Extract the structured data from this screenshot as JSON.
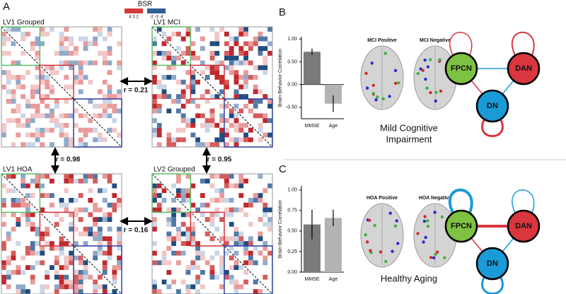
{
  "panels": [
    "A",
    "B",
    "C"
  ],
  "bsr_legend": {
    "title": "BSR",
    "positive_labels": "4 3 2",
    "negative_labels": "-2 -3 -4"
  },
  "matrices": [
    {
      "title": "LV1 Grouped"
    },
    {
      "title": "LV1 MCI"
    },
    {
      "title": "LV1 HOA"
    },
    {
      "title": "LV2 Grouped"
    }
  ],
  "correlations": [
    "r = 0.21",
    "r = 0.98",
    "r = 0.95",
    "r = 0.16"
  ],
  "chart_data": [
    {
      "type": "bar",
      "y_label": "Brain-Behavior Correlation",
      "categories": [
        "MMSE",
        "Age"
      ],
      "values": [
        0.72,
        -0.42
      ],
      "errors": [
        0.07,
        0.18
      ],
      "colors": [
        "#7a7a7a",
        "#b3b3b3"
      ],
      "ylim": [
        -0.75,
        1.05
      ],
      "yticks": [
        {
          "value": 1,
          "label": "1.00"
        },
        {
          "value": 0.5,
          "label": "0.50"
        },
        {
          "value": 0,
          "label": "0.00"
        },
        {
          "value": -0.5,
          "label": "-0.50"
        }
      ]
    },
    {
      "type": "bar",
      "y_label": "Brain-Behavior Correlation",
      "categories": [
        "MMSE",
        "Age"
      ],
      "values": [
        0.58,
        0.66
      ],
      "errors": [
        0.18,
        0.1
      ],
      "colors": [
        "#7a7a7a",
        "#b3b3b3"
      ],
      "ylim": [
        0,
        1.05
      ],
      "yticks": [
        {
          "value": 0,
          "label": "0.00"
        },
        0.25,
        {
          "value": 0.5,
          "label": "0.50"
        },
        0.75,
        {
          "value": 1,
          "label": "1.00"
        }
      ]
    }
  ],
  "sections": [
    {
      "positive": "MCI Positive",
      "negative": "MCI Negative",
      "caption": [
        "Mild Cognitive",
        "Impairment"
      ],
      "networks": [
        "FPCN",
        "DAN",
        "DN"
      ]
    },
    {
      "positive": "HOA Positive",
      "negative": "HOA Negative",
      "caption": [
        "Healthy Aging"
      ],
      "networks": [
        "FPCN",
        "DAN",
        "DN"
      ]
    }
  ]
}
